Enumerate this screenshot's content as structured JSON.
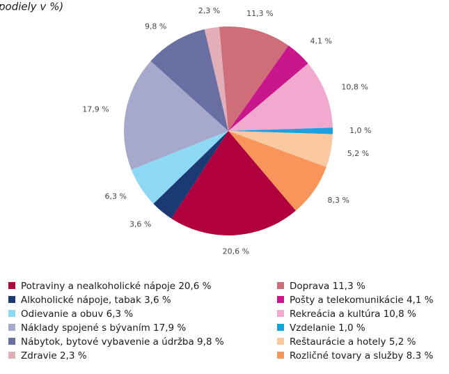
{
  "chart_data": {
    "type": "pie",
    "title": "podiely v %)",
    "categories": [
      "Potraviny a nealkoholické nápoje",
      "Alkoholické nápoje, tabak",
      "Odievanie a obuv",
      "Náklady spojené s bývaním",
      "Nábytok, bytové vybavenie a údržba",
      "Zdravie",
      "Doprava",
      "Pošty a telekomunikácie",
      "Rekreácia a kultúra",
      "Vzdelanie",
      "Reštaurácie a hotely",
      "Rozličné tovary a služby"
    ],
    "values": [
      20.6,
      3.6,
      6.3,
      17.9,
      9.8,
      2.3,
      11.3,
      4.1,
      10.8,
      1.0,
      5.2,
      8.3
    ],
    "value_labels": [
      "20,6 %",
      "3,6 %",
      "6,3 %",
      "17,9 %",
      "9,8 %",
      "2,3 %",
      "11,3 %",
      "4,1 %",
      "10,8 %",
      "1,0 %",
      "5,2 %",
      "8,3 %"
    ],
    "legend_labels": [
      "Potraviny a nealkoholické nápoje 20,6 %",
      "Alkoholické nápoje, tabak 3,6 %",
      "Odievanie a obuv 6,3 %",
      "Náklady spojené s bývaním 17,9 %",
      "Nábytok, bytové vybavenie a údržba 9,8 %",
      "Zdravie 2,3 %",
      "Doprava 11,3 %",
      "Pošty a telekomunikácie 4,1 %",
      "Rekreácia a kultúra 10,8 %",
      "Vzdelanie 1,0 %",
      "Reštaurácie a hotely 5,2 %",
      "Rozličné tovary a služby 8.3 %"
    ],
    "colors": [
      "#b0003e",
      "#1b3a73",
      "#8dd8f5",
      "#a6a9cb",
      "#6a6fa3",
      "#e2aeb8",
      "#cf6e78",
      "#c9168b",
      "#f2a9cf",
      "#1ba0e0",
      "#fbc9a0",
      "#f7955a"
    ]
  }
}
